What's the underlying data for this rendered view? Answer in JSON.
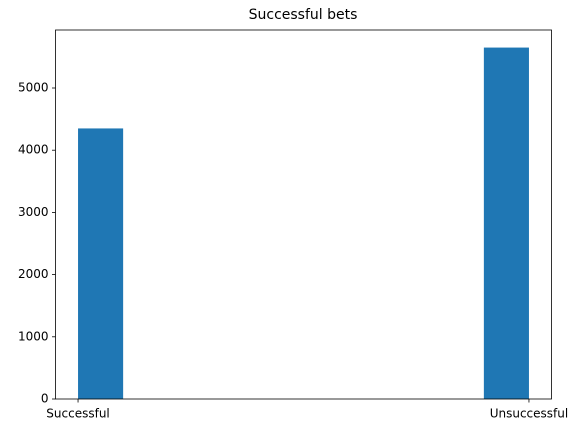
{
  "chart_data": {
    "type": "histogram",
    "title": "Successful bets",
    "bins": [
      0,
      0.1,
      0.2,
      0.3,
      0.4,
      0.5,
      0.6,
      0.7,
      0.8,
      0.9,
      1
    ],
    "values": [
      4350,
      0,
      0,
      0,
      0,
      0,
      0,
      0,
      0,
      5650
    ],
    "color": "#1f77b4",
    "xlim": [
      -0.05,
      1.05
    ],
    "xticks": [
      {
        "value": 0,
        "label": "Successful"
      },
      {
        "value": 1,
        "label": "Unsuccessful"
      }
    ],
    "ylim": [
      0,
      5932.5
    ],
    "yticks": [
      0,
      1000,
      2000,
      3000,
      4000,
      5000
    ],
    "grid": false
  }
}
